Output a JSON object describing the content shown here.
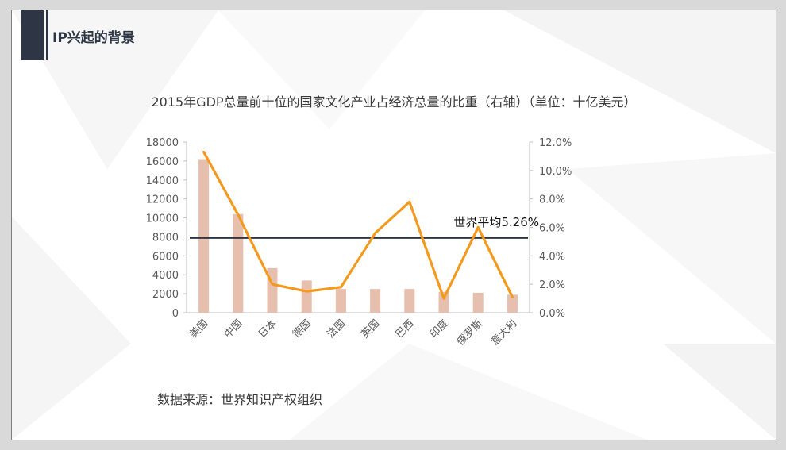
{
  "slide": {
    "title": "IP兴起的背景"
  },
  "chart_data": {
    "type": "bar",
    "title": "2015年GDP总量前十位的国家文化产业占经济总量的比重（右轴）（单位：十亿美元）",
    "categories": [
      "美国",
      "中国",
      "日本",
      "德国",
      "法国",
      "英国",
      "巴西",
      "印度",
      "俄罗斯",
      "意大利"
    ],
    "series": [
      {
        "type": "bar",
        "values": [
          16200,
          10400,
          4700,
          3400,
          2500,
          2500,
          2500,
          2200,
          2100,
          1900
        ],
        "color": "#e7bfae"
      },
      {
        "type": "line",
        "axis": "right",
        "values": [
          11.3,
          6.9,
          2.0,
          1.5,
          1.8,
          5.6,
          7.8,
          1.0,
          6.0,
          1.1
        ],
        "color": "#f39a1e"
      }
    ],
    "y_left": {
      "ticks": [
        "18000",
        "16000",
        "14000",
        "12000",
        "10000",
        "8000",
        "6000",
        "4000",
        "2000",
        "0"
      ],
      "ylim": [
        0,
        18000
      ]
    },
    "y_right": {
      "ticks": [
        "12.0%",
        "10.0%",
        "8.0%",
        "6.0%",
        "4.0%",
        "2.0%",
        "0.0%"
      ],
      "ylim": [
        0,
        12
      ]
    },
    "reference_line": {
      "value": 5.26,
      "axis": "right",
      "label": "世界平均5.26%",
      "color": "#2e3645"
    },
    "grid": false
  },
  "source": "数据来源：世界知识产权组织"
}
